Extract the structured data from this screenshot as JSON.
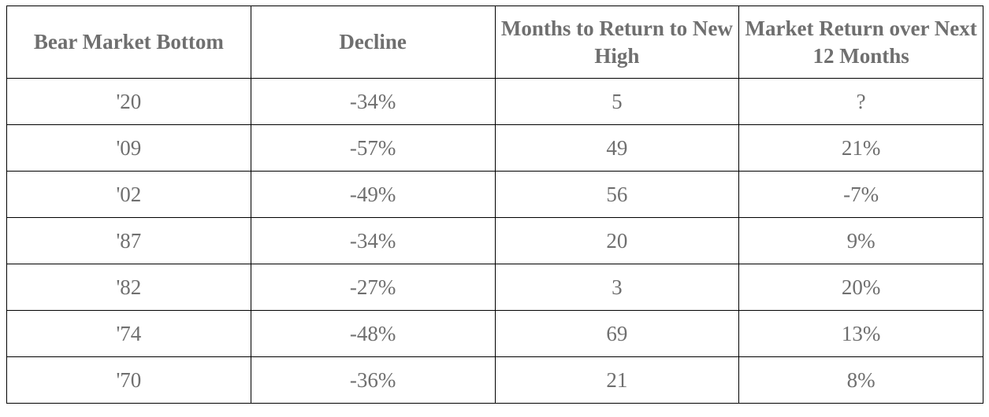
{
  "chart_data": {
    "type": "table",
    "columns": [
      "Bear Market Bottom",
      "Decline",
      "Months to Return to New High",
      "Market Return over Next 12 Months"
    ],
    "rows": [
      [
        "'20",
        "-34%",
        "5",
        "?"
      ],
      [
        "'09",
        "-57%",
        "49",
        "21%"
      ],
      [
        "'02",
        "-49%",
        "56",
        "-7%"
      ],
      [
        "'87",
        "-34%",
        "20",
        "9%"
      ],
      [
        "'82",
        "-27%",
        "3",
        "20%"
      ],
      [
        "'74",
        "-48%",
        "69",
        "13%"
      ],
      [
        "'70",
        "-36%",
        "21",
        "8%"
      ]
    ]
  },
  "colors": {
    "text": "#6f6f6f",
    "border": "#000000",
    "background": "#ffffff"
  }
}
